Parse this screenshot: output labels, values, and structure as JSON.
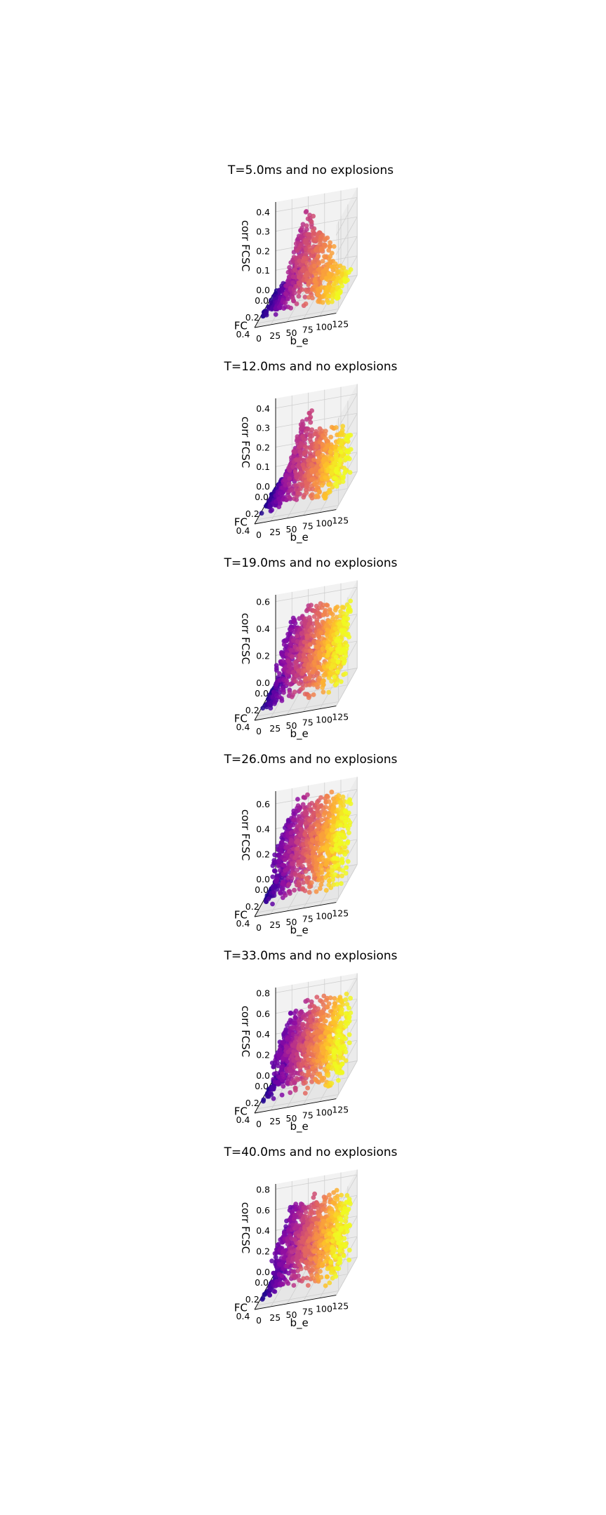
{
  "chart_data": [
    {
      "type": "scatter",
      "title": "T=5.0ms and no explosions",
      "xlabel": "b_e",
      "ylabel": "FC",
      "zlabel": "corr FCSC",
      "xlim": [
        0,
        125
      ],
      "ylim": [
        0,
        0.45
      ],
      "zlim": [
        0,
        0.45
      ],
      "xticks": [
        "0",
        "25",
        "50",
        "75",
        "100",
        "125"
      ],
      "yticks": [
        "0.0",
        "0.2",
        "0.4"
      ],
      "zticks": [
        "0.0",
        "0.1",
        "0.2",
        "0.3",
        "0.4"
      ],
      "colormap": "plasma",
      "color_by": "b_e",
      "b_e_columns": [
        5,
        10,
        15,
        20,
        25,
        30,
        35,
        40,
        45,
        50,
        55,
        60,
        65,
        70,
        75,
        80,
        85,
        90,
        95,
        100,
        105,
        110,
        115
      ],
      "corr_peak_by_column": [
        0.02,
        0.03,
        0.04,
        0.05,
        0.06,
        0.07,
        0.12,
        0.22,
        0.36,
        0.42,
        0.4,
        0.38,
        0.34,
        0.3,
        0.28,
        0.26,
        0.22,
        0.18,
        0.14,
        0.1,
        0.07,
        0.05,
        0.04
      ],
      "fc_max": 0.35
    },
    {
      "type": "scatter",
      "title": "T=12.0ms and no explosions",
      "xlabel": "b_e",
      "ylabel": "FC",
      "zlabel": "corr FCSC",
      "xlim": [
        0,
        125
      ],
      "ylim": [
        0,
        0.45
      ],
      "zlim": [
        0,
        0.45
      ],
      "xticks": [
        "0",
        "25",
        "50",
        "75",
        "100",
        "125"
      ],
      "yticks": [
        "0.0",
        "0.2",
        "0.4"
      ],
      "zticks": [
        "0.0",
        "0.1",
        "0.2",
        "0.3",
        "0.4"
      ],
      "colormap": "plasma",
      "color_by": "b_e",
      "b_e_columns": [
        5,
        10,
        15,
        20,
        25,
        30,
        35,
        40,
        45,
        50,
        55,
        60,
        65,
        70,
        75,
        80,
        85,
        90,
        95,
        100,
        105,
        110,
        115
      ],
      "corr_peak_by_column": [
        0.02,
        0.04,
        0.06,
        0.08,
        0.1,
        0.14,
        0.2,
        0.26,
        0.32,
        0.4,
        0.38,
        0.3,
        0.28,
        0.28,
        0.28,
        0.28,
        0.28,
        0.28,
        0.27,
        0.27,
        0.26,
        0.25,
        0.24
      ],
      "fc_max": 0.35
    },
    {
      "type": "scatter",
      "title": "T=19.0ms and no explosions",
      "xlabel": "b_e",
      "ylabel": "FC",
      "zlabel": "corr FCSC",
      "xlim": [
        0,
        125
      ],
      "ylim": [
        0,
        0.45
      ],
      "zlim": [
        0,
        0.65
      ],
      "xticks": [
        "0",
        "25",
        "50",
        "75",
        "100",
        "125"
      ],
      "yticks": [
        "0.0",
        "0.2",
        "0.4"
      ],
      "zticks": [
        "0.0",
        "0.2",
        "0.4",
        "0.6"
      ],
      "colormap": "plasma",
      "color_by": "b_e",
      "b_e_columns": [
        5,
        10,
        15,
        20,
        25,
        30,
        35,
        40,
        45,
        50,
        55,
        60,
        65,
        70,
        75,
        80,
        85,
        90,
        95,
        100,
        105,
        110,
        115
      ],
      "corr_peak_by_column": [
        0.03,
        0.06,
        0.1,
        0.2,
        0.46,
        0.5,
        0.52,
        0.53,
        0.54,
        0.55,
        0.55,
        0.55,
        0.55,
        0.55,
        0.55,
        0.55,
        0.55,
        0.55,
        0.54,
        0.54,
        0.54,
        0.53,
        0.53
      ],
      "fc_max": 0.35
    },
    {
      "type": "scatter",
      "title": "T=26.0ms and no explosions",
      "xlabel": "b_e",
      "ylabel": "FC",
      "zlabel": "corr FCSC",
      "xlim": [
        0,
        125
      ],
      "ylim": [
        0,
        0.45
      ],
      "zlim": [
        0,
        0.7
      ],
      "xticks": [
        "0",
        "25",
        "50",
        "75",
        "100",
        "125"
      ],
      "yticks": [
        "0.0",
        "0.2",
        "0.4"
      ],
      "zticks": [
        "0.0",
        "0.2",
        "0.4",
        "0.6"
      ],
      "colormap": "plasma",
      "color_by": "b_e",
      "b_e_columns": [
        5,
        10,
        15,
        20,
        25,
        30,
        35,
        40,
        45,
        50,
        55,
        60,
        65,
        70,
        75,
        80,
        85,
        90,
        95,
        100,
        105,
        110,
        115
      ],
      "corr_peak_by_column": [
        0.03,
        0.06,
        0.12,
        0.5,
        0.56,
        0.6,
        0.62,
        0.63,
        0.64,
        0.64,
        0.64,
        0.64,
        0.64,
        0.64,
        0.63,
        0.63,
        0.63,
        0.63,
        0.62,
        0.62,
        0.62,
        0.61,
        0.6
      ],
      "fc_max": 0.35
    },
    {
      "type": "scatter",
      "title": "T=33.0ms and no explosions",
      "xlabel": "b_e",
      "ylabel": "FC",
      "zlabel": "corr FCSC",
      "xlim": [
        0,
        125
      ],
      "ylim": [
        0,
        0.45
      ],
      "zlim": [
        0,
        0.85
      ],
      "xticks": [
        "0",
        "25",
        "50",
        "75",
        "100",
        "125"
      ],
      "yticks": [
        "0.0",
        "0.2",
        "0.4"
      ],
      "zticks": [
        "0.0",
        "0.2",
        "0.4",
        "0.6",
        "0.8"
      ],
      "colormap": "plasma",
      "color_by": "b_e",
      "b_e_columns": [
        5,
        10,
        15,
        20,
        25,
        30,
        35,
        40,
        45,
        50,
        55,
        60,
        65,
        70,
        75,
        80,
        85,
        90,
        95,
        100,
        105,
        110,
        115
      ],
      "corr_peak_by_column": [
        0.03,
        0.06,
        0.14,
        0.52,
        0.62,
        0.66,
        0.68,
        0.69,
        0.7,
        0.7,
        0.7,
        0.7,
        0.7,
        0.7,
        0.7,
        0.7,
        0.7,
        0.69,
        0.69,
        0.69,
        0.68,
        0.68,
        0.67
      ],
      "fc_max": 0.35
    },
    {
      "type": "scatter",
      "title": "T=40.0ms and no explosions",
      "xlabel": "b_e",
      "ylabel": "FC",
      "zlabel": "corr FCSC",
      "xlim": [
        0,
        125
      ],
      "ylim": [
        0,
        0.45
      ],
      "zlim": [
        0,
        0.85
      ],
      "xticks": [
        "0",
        "25",
        "50",
        "75",
        "100",
        "125"
      ],
      "yticks": [
        "0.0",
        "0.2",
        "0.4"
      ],
      "zticks": [
        "0.0",
        "0.2",
        "0.4",
        "0.6",
        "0.8"
      ],
      "colormap": "plasma",
      "color_by": "b_e",
      "b_e_columns": [
        5,
        10,
        15,
        20,
        25,
        30,
        35,
        40,
        45,
        50,
        55,
        60,
        65,
        70,
        75,
        80,
        85,
        90,
        95,
        100,
        105,
        110,
        115
      ],
      "corr_peak_by_column": [
        0.03,
        0.06,
        0.16,
        0.54,
        0.64,
        0.68,
        0.7,
        0.71,
        0.72,
        0.72,
        0.72,
        0.72,
        0.72,
        0.72,
        0.72,
        0.72,
        0.72,
        0.71,
        0.71,
        0.71,
        0.7,
        0.7,
        0.7
      ],
      "fc_max": 0.35
    }
  ]
}
